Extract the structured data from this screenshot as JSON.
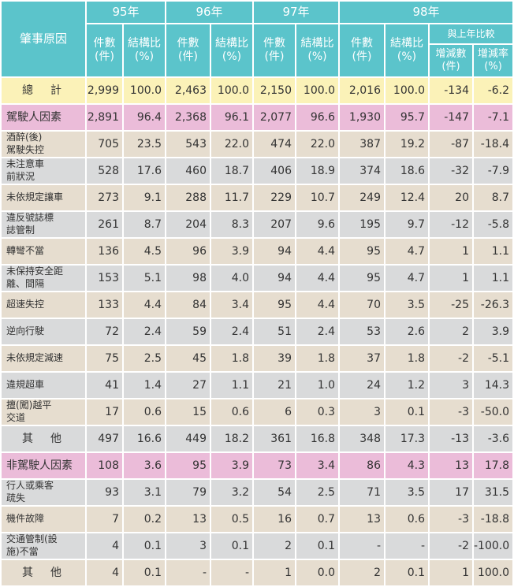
{
  "header": {
    "cause": "肇事原因",
    "years": [
      "95年",
      "96年",
      "97年",
      "98年"
    ],
    "count": "件數\n(件)",
    "ratio": "結構比\n(%)",
    "compare": "與上年比較",
    "change_count": "增減數\n(件)",
    "change_rate": "增減率\n(%)"
  },
  "rows": [
    {
      "cause": "總　計",
      "v": [
        "2,999",
        "100.0",
        "2,463",
        "100.0",
        "2,150",
        "100.0",
        "2,016",
        "100.0",
        "-134",
        "-6.2"
      ]
    },
    {
      "cause": "駕駛人因素",
      "v": [
        "2,891",
        "96.4",
        "2,368",
        "96.1",
        "2,077",
        "96.6",
        "1,930",
        "95.7",
        "-147",
        "-7.1"
      ]
    },
    {
      "cause": "酒醉(後)\n駕駛失控",
      "v": [
        "705",
        "23.5",
        "543",
        "22.0",
        "474",
        "22.0",
        "387",
        "19.2",
        "-87",
        "-18.4"
      ]
    },
    {
      "cause": "未注意車\n前狀況",
      "v": [
        "528",
        "17.6",
        "460",
        "18.7",
        "406",
        "18.9",
        "374",
        "18.6",
        "-32",
        "-7.9"
      ]
    },
    {
      "cause": "未依規定讓車",
      "v": [
        "273",
        "9.1",
        "288",
        "11.7",
        "229",
        "10.7",
        "249",
        "12.4",
        "20",
        "8.7"
      ]
    },
    {
      "cause": "違反號誌標\n誌管制",
      "v": [
        "261",
        "8.7",
        "204",
        "8.3",
        "207",
        "9.6",
        "195",
        "9.7",
        "-12",
        "-5.8"
      ]
    },
    {
      "cause": "轉彎不當",
      "v": [
        "136",
        "4.5",
        "96",
        "3.9",
        "94",
        "4.4",
        "95",
        "4.7",
        "1",
        "1.1"
      ]
    },
    {
      "cause": "未保持安全距\n離、間隔",
      "v": [
        "153",
        "5.1",
        "98",
        "4.0",
        "94",
        "4.4",
        "95",
        "4.7",
        "1",
        "1.1"
      ]
    },
    {
      "cause": "超速失控",
      "v": [
        "133",
        "4.4",
        "84",
        "3.4",
        "95",
        "4.4",
        "70",
        "3.5",
        "-25",
        "-26.3"
      ]
    },
    {
      "cause": "逆向行駛",
      "v": [
        "72",
        "2.4",
        "59",
        "2.4",
        "51",
        "2.4",
        "53",
        "2.6",
        "2",
        "3.9"
      ]
    },
    {
      "cause": "未依規定減速",
      "v": [
        "75",
        "2.5",
        "45",
        "1.8",
        "39",
        "1.8",
        "37",
        "1.8",
        "-2",
        "-5.1"
      ]
    },
    {
      "cause": "違規超車",
      "v": [
        "41",
        "1.4",
        "27",
        "1.1",
        "21",
        "1.0",
        "24",
        "1.2",
        "3",
        "14.3"
      ]
    },
    {
      "cause": "擅(闖)越平\n交道",
      "v": [
        "17",
        "0.6",
        "15",
        "0.6",
        "6",
        "0.3",
        "3",
        "0.1",
        "-3",
        "-50.0"
      ]
    },
    {
      "cause": "其　他",
      "v": [
        "497",
        "16.6",
        "449",
        "18.2",
        "361",
        "16.8",
        "348",
        "17.3",
        "-13",
        "-3.6"
      ]
    },
    {
      "cause": "非駕駛人因素",
      "v": [
        "108",
        "3.6",
        "95",
        "3.9",
        "73",
        "3.4",
        "86",
        "4.3",
        "13",
        "17.8"
      ]
    },
    {
      "cause": "行人或乘客\n疏失",
      "v": [
        "93",
        "3.1",
        "79",
        "3.2",
        "54",
        "2.5",
        "71",
        "3.5",
        "17",
        "31.5"
      ]
    },
    {
      "cause": "機件故障",
      "v": [
        "7",
        "0.2",
        "13",
        "0.5",
        "16",
        "0.7",
        "13",
        "0.6",
        "-3",
        "-18.8"
      ]
    },
    {
      "cause": "交通管制(設\n施)不當",
      "v": [
        "4",
        "0.1",
        "3",
        "0.1",
        "2",
        "0.1",
        "-",
        "-",
        "-2",
        "-100.0"
      ]
    },
    {
      "cause": "其　他",
      "v": [
        "4",
        "0.1",
        "-",
        "-",
        "1",
        "0.0",
        "2",
        "0.1",
        "1",
        "100.0"
      ]
    }
  ]
}
